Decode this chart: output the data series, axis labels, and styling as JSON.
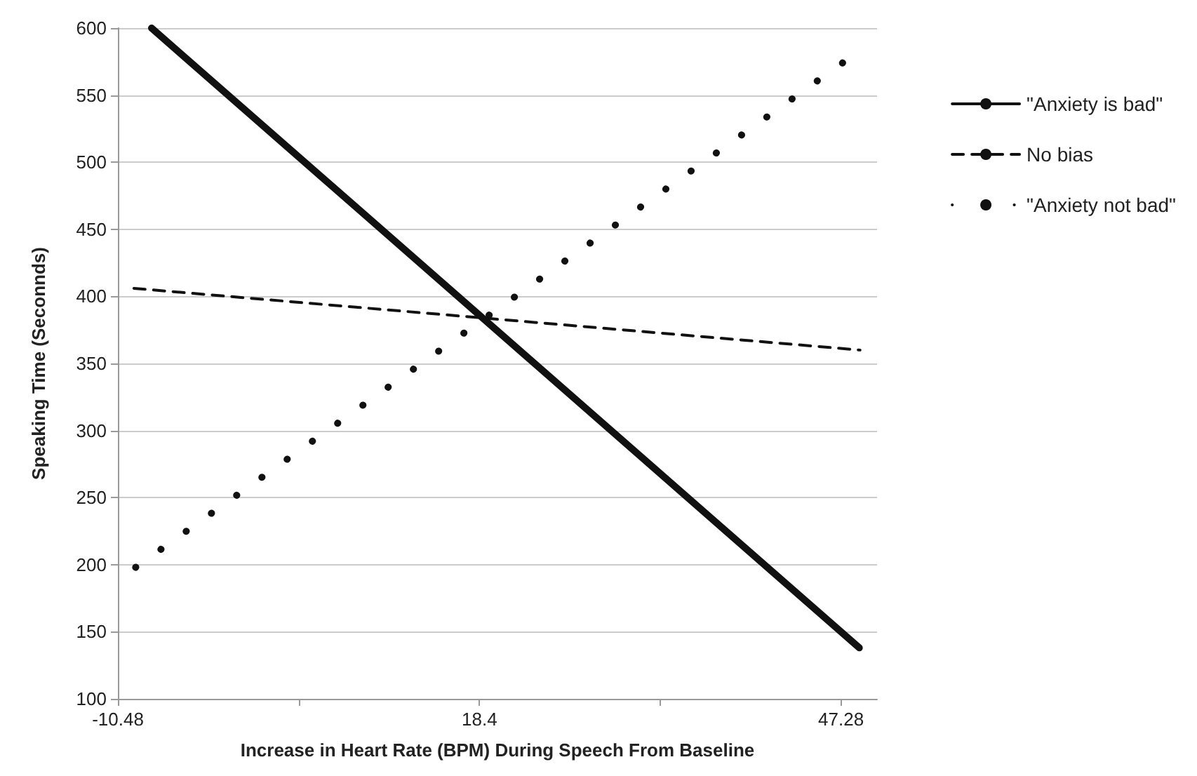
{
  "chart_data": {
    "type": "line",
    "xlabel": "Increase in Heart Rate (BPM) During Speech From Baseline",
    "ylabel": "Speaking Time (Seconnds)",
    "xlim": [
      -10.48,
      50.16
    ],
    "xticks": [
      -10.48,
      {
        "value": 3.96,
        "label": null
      },
      18.4,
      {
        "value": 32.84,
        "label": null
      },
      47.28
    ],
    "ylim": [
      100,
      600
    ],
    "yticks": [
      100,
      150,
      200,
      250,
      300,
      350,
      400,
      450,
      500,
      550,
      600
    ],
    "grid": "y",
    "legend": "right",
    "marker": "none",
    "series": [
      {
        "name": "\"Anxiety is bad\"",
        "color": "#111111",
        "line_style": "solid",
        "x": [
          -7.79,
          48.74
        ],
        "values": [
          600,
          138
        ]
      },
      {
        "name": "No bias",
        "color": "#111111",
        "line_style": "dashed",
        "x": [
          -9.2,
          48.8
        ],
        "values": [
          406,
          360
        ]
      },
      {
        "name": "\"Anxiety not bad\"",
        "color": "#111111",
        "line_style": "dotted",
        "x": [
          -9.06,
          47.7
        ],
        "values": [
          198,
          576
        ]
      }
    ]
  }
}
